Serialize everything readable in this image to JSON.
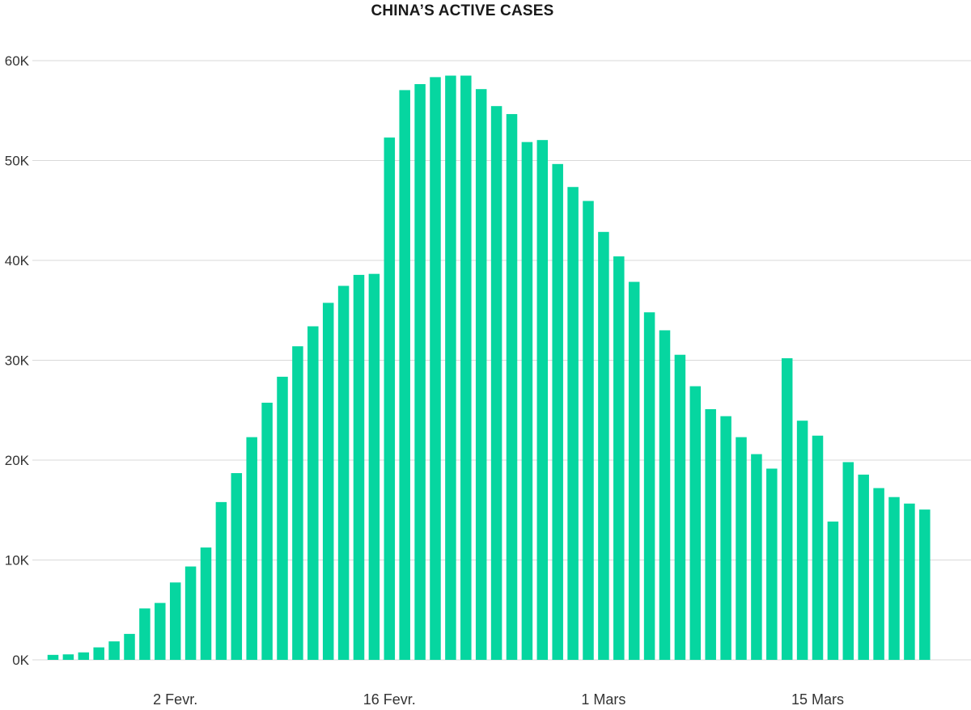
{
  "chart_data": {
    "type": "bar",
    "title": "CHINA’S ACTIVE CASES",
    "xlabel": "",
    "ylabel": "",
    "ylim": [
      0,
      60000
    ],
    "yticks": [
      {
        "value": 0,
        "label": "0K"
      },
      {
        "value": 10000,
        "label": "10K"
      },
      {
        "value": 20000,
        "label": "20K"
      },
      {
        "value": 30000,
        "label": "30K"
      },
      {
        "value": 40000,
        "label": "40K"
      },
      {
        "value": 50000,
        "label": "50K"
      },
      {
        "value": 60000,
        "label": "60K"
      }
    ],
    "xtick_labels": [
      {
        "index": 8,
        "label": "2 Fevr."
      },
      {
        "index": 22,
        "label": "16 Fevr."
      },
      {
        "index": 36,
        "label": "1 Mars"
      },
      {
        "index": 50,
        "label": "15 Mars"
      }
    ],
    "grid": true,
    "bar_color": "#06d6a0",
    "values": [
      500,
      550,
      750,
      1250,
      1850,
      2600,
      5150,
      5700,
      7750,
      9350,
      11250,
      15800,
      18700,
      22300,
      25750,
      28350,
      31400,
      33400,
      35750,
      37450,
      38550,
      38650,
      52300,
      57050,
      57650,
      58350,
      58500,
      58500,
      57150,
      55450,
      54650,
      51850,
      52050,
      49650,
      47350,
      45950,
      42850,
      40400,
      37850,
      34800,
      33000,
      30550,
      27400,
      25100,
      24400,
      22300,
      20600,
      19150,
      30200,
      23950,
      22450,
      13850,
      19800,
      18550,
      17200,
      16300,
      15650,
      15050
    ]
  }
}
